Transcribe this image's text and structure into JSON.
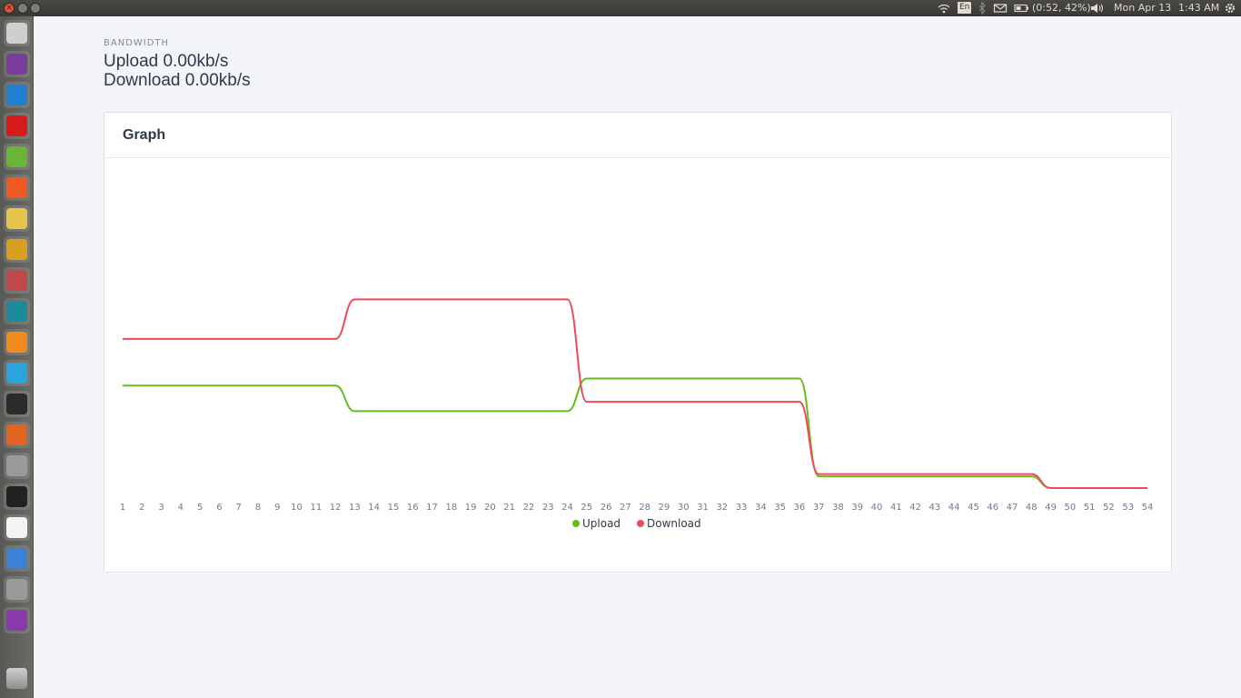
{
  "top_panel": {
    "language": "En",
    "battery": "(0:52, 42%)",
    "date": "Mon Apr 13",
    "time": "1:43 AM"
  },
  "launcher": {
    "items": [
      {
        "name": "ubuntu-dash",
        "color": "#cfcfcf"
      },
      {
        "name": "tor-browser",
        "color": "#7a3d9c"
      },
      {
        "name": "vscode",
        "color": "#1f7fd1"
      },
      {
        "name": "opera",
        "color": "#d91a1a"
      },
      {
        "name": "leaf-app",
        "color": "#6bb536"
      },
      {
        "name": "brave",
        "color": "#f05a22"
      },
      {
        "name": "cheese-app",
        "color": "#e6c54a"
      },
      {
        "name": "blocks-app",
        "color": "#d9a020"
      },
      {
        "name": "files",
        "color": "#c04848"
      },
      {
        "name": "arduino",
        "color": "#1b8b98"
      },
      {
        "name": "sublime-text",
        "color": "#f08c1e"
      },
      {
        "name": "telegram",
        "color": "#2aa3df"
      },
      {
        "name": "terminal",
        "color": "#2b2b2b"
      },
      {
        "name": "matlab",
        "color": "#e26420"
      },
      {
        "name": "unknown-app",
        "color": "#9a9a9a"
      },
      {
        "name": "downloader",
        "color": "#222222"
      },
      {
        "name": "pdf-viewer",
        "color": "#f3f3f3"
      },
      {
        "name": "chrome",
        "color": "#3b82d6"
      },
      {
        "name": "unknown-app-2",
        "color": "#9a9a9a"
      },
      {
        "name": "workspace-switcher",
        "color": "#8a3aa8"
      }
    ],
    "trash": "trash"
  },
  "bandwidth": {
    "label": "BANDWIDTH",
    "upload": "Upload 0.00kb/s",
    "download": "Download 0.00kb/s"
  },
  "card": {
    "title": "Graph"
  },
  "chart_data": {
    "type": "line",
    "title": "Graph",
    "x": [
      1,
      2,
      3,
      4,
      5,
      6,
      7,
      8,
      9,
      10,
      11,
      12,
      13,
      14,
      15,
      16,
      17,
      18,
      19,
      20,
      21,
      22,
      23,
      24,
      25,
      26,
      27,
      28,
      29,
      30,
      31,
      32,
      33,
      34,
      35,
      36,
      37,
      38,
      39,
      40,
      41,
      42,
      43,
      44,
      45,
      46,
      47,
      48,
      49,
      50,
      51,
      52,
      53,
      54
    ],
    "x_tick_labels": [
      "1",
      "2",
      "3",
      "4",
      "5",
      "6",
      "7",
      "8",
      "9",
      "10",
      "11",
      "12",
      "13",
      "14",
      "15",
      "16",
      "17",
      "18",
      "19",
      "20",
      "21",
      "22",
      "23",
      "24",
      "25",
      "26",
      "27",
      "28",
      "29",
      "30",
      "31",
      "32",
      "33",
      "34",
      "35",
      "36",
      "37",
      "38",
      "39",
      "40",
      "41",
      "42",
      "43",
      "44",
      "45",
      "46",
      "47",
      "48",
      "49",
      "50",
      "51",
      "52",
      "53",
      "54"
    ],
    "ylim": [
      0,
      110
    ],
    "grid": false,
    "legend": "bottom-center",
    "series": [
      {
        "name": "Upload",
        "color": "#66bb1a",
        "values": [
          44,
          44,
          44,
          44,
          44,
          44,
          44,
          44,
          44,
          44,
          44,
          44,
          33,
          33,
          33,
          33,
          33,
          33,
          33,
          33,
          33,
          33,
          33,
          33,
          47,
          47,
          47,
          47,
          47,
          47,
          47,
          47,
          47,
          47,
          47,
          47,
          5,
          5,
          5,
          5,
          5,
          5,
          5,
          5,
          5,
          5,
          5,
          5,
          0,
          0,
          0,
          0,
          0,
          0
        ]
      },
      {
        "name": "Download",
        "color": "#ee4a58",
        "values": [
          64,
          64,
          64,
          64,
          64,
          64,
          64,
          64,
          64,
          64,
          64,
          64,
          81,
          81,
          81,
          81,
          81,
          81,
          81,
          81,
          81,
          81,
          81,
          81,
          37,
          37,
          37,
          37,
          37,
          37,
          37,
          37,
          37,
          37,
          37,
          37,
          6,
          6,
          6,
          6,
          6,
          6,
          6,
          6,
          6,
          6,
          6,
          6,
          0,
          0,
          0,
          0,
          0,
          0
        ]
      }
    ]
  }
}
